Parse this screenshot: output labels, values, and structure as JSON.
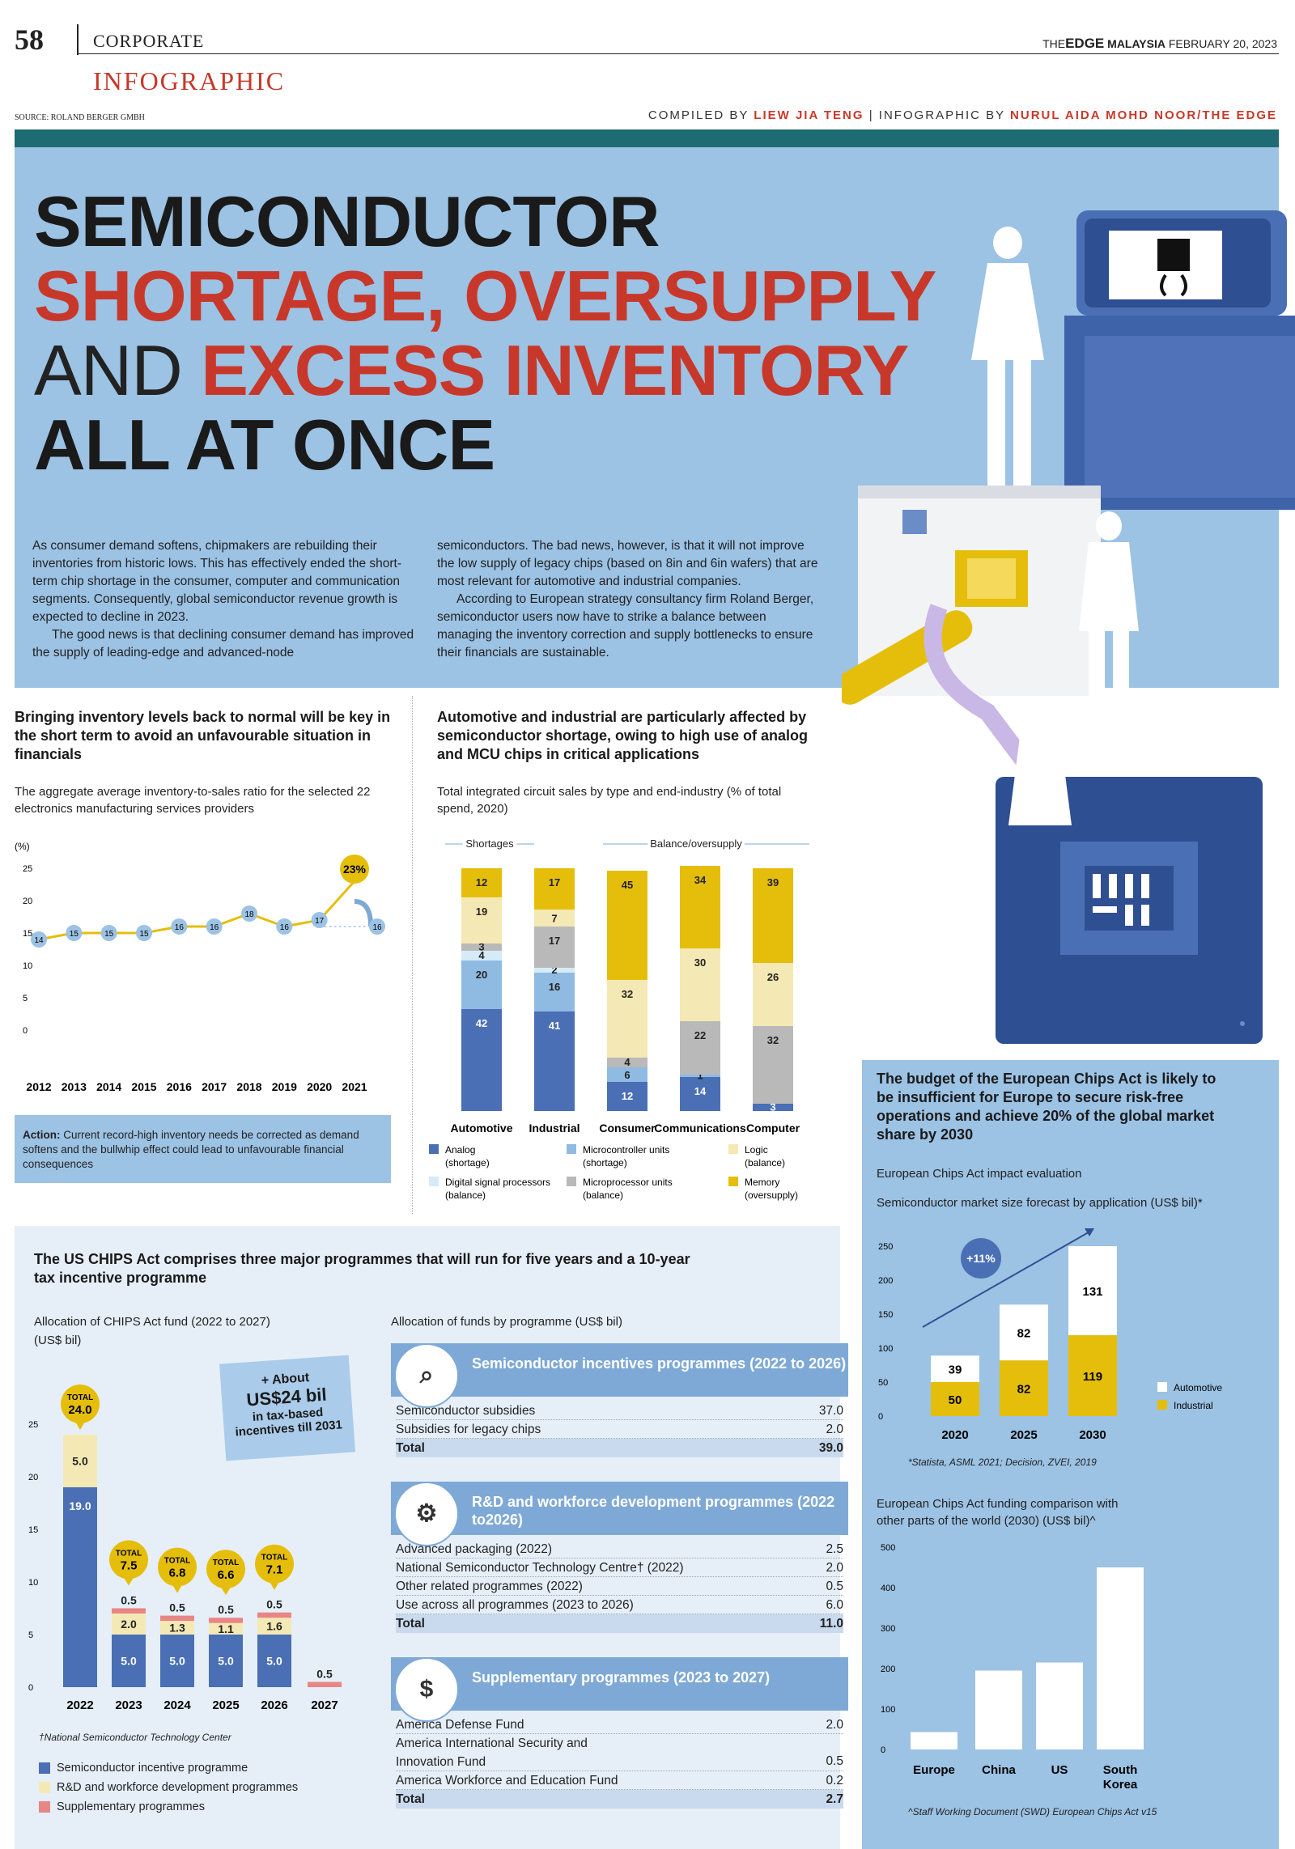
{
  "header": {
    "page_number": "58",
    "section": "CORPORATE",
    "tag": "INFOGRAPHIC",
    "masthead_the": "THE",
    "masthead_edge": "EDGE",
    "masthead_malaysia": "MALAYSIA",
    "date": "FEBRUARY 20, 2023",
    "source": "SOURCE: ROLAND BERGER GMBH",
    "compiled_prefix": "COMPILED BY ",
    "compiled_name": "LIEW JIA TENG",
    "infographic_prefix": "INFOGRAPHIC BY ",
    "infographic_name": "NURUL AIDA MOHD NOOR/THE EDGE"
  },
  "title": {
    "line1": "SEMICONDUCTOR",
    "line2": "SHORTAGE, OVERSUPPLY",
    "line3a": "AND ",
    "line3b": "EXCESS INVENTORY",
    "line4": "ALL AT ONCE"
  },
  "intro": {
    "p1": "As consumer demand softens, chipmakers are rebuilding their inventories from historic lows. This has effectively ended the short-term chip shortage in the consumer, computer and communication segments. Consequently, global semiconductor revenue growth is expected to decline in 2023.",
    "p2": "The good news is that declining consumer demand has improved the supply of leading-edge and advanced-node",
    "p3": "semiconductors. The bad news, however, is that it will not improve the low supply of legacy chips (based on 8in and 6in wafers) that are most relevant for automotive and industrial companies.",
    "p4": "According to European strategy consultancy firm Roland Berger, semiconductor users now have to strike a balance between managing the inventory correction and supply bottlenecks to ensure their financials are sustainable."
  },
  "inventory": {
    "heading": "Bringing inventory levels back to normal will be key in the short term to avoid an unfavourable situation in financials",
    "subtitle": "The aggregate average inventory-to-sales ratio for the selected 22 electronics manufacturing services providers",
    "action_label": "Action:",
    "action_text": " Current record-high inventory needs be corrected as demand softens and the bullwhip effect could lead to unfavourable financial consequences"
  },
  "ic": {
    "heading": "Automotive and industrial are particularly affected by semiconductor shortage, owing to high use of analog and MCU chips in critical applications",
    "subtitle": "Total integrated circuit sales by type and end-industry (% of total spend, 2020)",
    "group_shortages": "Shortages",
    "group_balance": "Balance/oversupply"
  },
  "eu": {
    "heading": "The budget of the European Chips Act is likely to be insufficient for Europe to secure risk-free operations and achieve 20% of the global market share by 2030",
    "impact_label": "European Chips Act impact evaluation",
    "forecast_sub": "Semiconductor market size forecast by application (US$ bil)*",
    "growth_badge": "+11%",
    "forecast_note": "*Statista, ASML 2021; Decision, ZVEI, 2019",
    "comp_sub": "European Chips Act funding comparison with other parts of the world (2030) (US$ bil)^",
    "comp_note": "^Staff Working Document (SWD) European Chips Act v15"
  },
  "us": {
    "heading": "The US CHIPS Act comprises three major programmes that will run for five years and a 10-year tax incentive programme",
    "alloc_sub1": "Allocation of CHIPS Act fund (2022 to 2027)",
    "alloc_sub2": "(US$ bil)",
    "note_line1": "+ About",
    "note_line2": "US$24 bil",
    "note_line3": "in tax-based",
    "note_line4": "incentives till 2031",
    "footnote": "†National Semiconductor Technology Center",
    "leg1": "Semiconductor incentive programme",
    "leg2": "R&D and workforce development programmes",
    "leg3": "Supplementary programmes",
    "by_prog_sub": "Allocation of funds by programme (US$ bil)",
    "programs": [
      {
        "title": "Semiconductor incentives programmes (2022 to 2026)",
        "icon": "magnifier-chip-icon",
        "rows": [
          [
            "Semiconductor subsidies",
            "37.0"
          ],
          [
            "Subsidies for legacy chips",
            "2.0"
          ]
        ],
        "total": [
          "Total",
          "39.0"
        ]
      },
      {
        "title": "R&D and workforce development programmes (2022 to2026)",
        "icon": "gear-people-icon",
        "rows": [
          [
            "Advanced packaging (2022)",
            "2.5"
          ],
          [
            "National Semiconductor Technology Centre† (2022)",
            "2.0"
          ],
          [
            "Other related programmes (2022)",
            "0.5"
          ],
          [
            "Use across all programmes (2023 to 2026)",
            "6.0"
          ]
        ],
        "total": [
          "Total",
          "11.0"
        ]
      },
      {
        "title": "Supplementary programmes (2023 to 2027)",
        "icon": "money-hand-icon",
        "rows": [
          [
            "America Defense Fund",
            "2.0"
          ],
          [
            "America International Security and Innovation Fund",
            "0.5"
          ],
          [
            "America Workforce and Education Fund",
            "0.2"
          ]
        ],
        "total": [
          "Total",
          "2.7"
        ]
      }
    ]
  },
  "chart_data": [
    {
      "id": "inventory",
      "type": "line",
      "ylabel": "(%)",
      "ylim": [
        0,
        25
      ],
      "yticks": [
        0,
        5,
        10,
        15,
        20,
        25
      ],
      "x": [
        "2012",
        "2013",
        "2014",
        "2015",
        "2016",
        "2017",
        "2018",
        "2019",
        "2020",
        "2021"
      ],
      "values": [
        14,
        15,
        15,
        15,
        16,
        16,
        18,
        16,
        17,
        23
      ],
      "highlight": "23%",
      "reference_value": 16
    },
    {
      "id": "ic_sales",
      "type": "bar",
      "stacked": true,
      "categories": [
        "Automotive",
        "Industrial",
        "Consumer",
        "Communications",
        "Computer"
      ],
      "series": [
        {
          "name": "Analog (shortage)",
          "color": "#4a6fb5",
          "values": [
            42,
            41,
            12,
            14,
            3
          ]
        },
        {
          "name": "Microcontroller units (shortage)",
          "color": "#8fbbe3",
          "values": [
            20,
            16,
            6,
            1,
            0
          ]
        },
        {
          "name": "Digital signal processors (balance)",
          "color": "#d6ebf7",
          "values": [
            4,
            2,
            0,
            0,
            0
          ]
        },
        {
          "name": "Microprocessor units (balance)",
          "color": "#b9b9b9",
          "values": [
            3,
            17,
            4,
            22,
            32
          ]
        },
        {
          "name": "Logic (balance)",
          "color": "#f4e9b4",
          "values": [
            19,
            7,
            32,
            30,
            26
          ]
        },
        {
          "name": "Memory (oversupply)",
          "color": "#e5be0c",
          "values": [
            12,
            17,
            45,
            34,
            39
          ]
        }
      ]
    },
    {
      "id": "eu_forecast",
      "type": "bar",
      "stacked": true,
      "categories": [
        "2020",
        "2025",
        "2030"
      ],
      "ylim": [
        0,
        250
      ],
      "yticks": [
        0,
        50,
        100,
        150,
        200,
        250
      ],
      "series": [
        {
          "name": "Industrial",
          "color": "#e5be0c",
          "values": [
            50,
            82,
            119
          ]
        },
        {
          "name": "Automotive",
          "color": "#ffffff",
          "values": [
            39,
            82,
            131
          ]
        }
      ]
    },
    {
      "id": "eu_comparison",
      "type": "bar",
      "categories": [
        "Europe",
        "China",
        "US",
        "South Korea"
      ],
      "values": [
        43,
        195,
        215,
        450
      ],
      "ylim": [
        0,
        500
      ],
      "yticks": [
        0,
        100,
        200,
        300,
        400,
        500
      ]
    },
    {
      "id": "us_chips",
      "type": "bar",
      "stacked": true,
      "categories": [
        "2022",
        "2023",
        "2024",
        "2025",
        "2026",
        "2027"
      ],
      "ylim": [
        0,
        25
      ],
      "yticks": [
        0,
        5,
        10,
        15,
        20,
        25
      ],
      "series": [
        {
          "name": "Semiconductor incentive programme",
          "color": "#4a6fb5",
          "values": [
            19.0,
            5.0,
            5.0,
            5.0,
            5.0,
            0
          ]
        },
        {
          "name": "R&D and workforce development programmes",
          "color": "#f4e9b4",
          "values": [
            5.0,
            2.0,
            1.3,
            1.1,
            1.6,
            0
          ]
        },
        {
          "name": "Supplementary programmes",
          "color": "#e88585",
          "values": [
            0,
            0.5,
            0.5,
            0.5,
            0.5,
            0.5
          ]
        }
      ],
      "totals": [
        "24.0",
        "7.5",
        "6.8",
        "6.6",
        "7.1",
        ""
      ],
      "total_label": "TOTAL"
    }
  ]
}
